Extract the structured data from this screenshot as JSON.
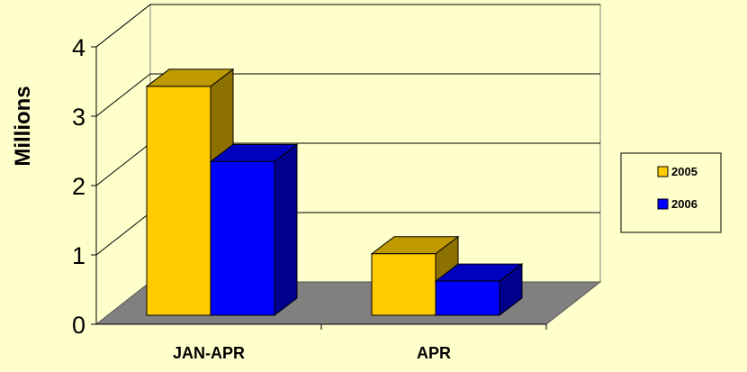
{
  "chart_data": {
    "type": "bar",
    "categories": [
      "JAN-APR",
      "APR"
    ],
    "series": [
      {
        "name": "2005",
        "values": [
          3.35,
          0.9
        ]
      },
      {
        "name": "2006",
        "values": [
          2.25,
          0.5
        ]
      }
    ],
    "title": "",
    "xlabel": "",
    "ylabel": "Millions",
    "ylim": [
      0,
      4
    ],
    "yticks": [
      "0",
      "1",
      "2",
      "3",
      "4"
    ],
    "grid": true,
    "legend_position": "right",
    "style": "3d-column"
  },
  "colors": {
    "background": "#FFFFCC",
    "series_2005": "#FFCC00",
    "series_2006": "#0000FF",
    "floor": "#808080"
  }
}
